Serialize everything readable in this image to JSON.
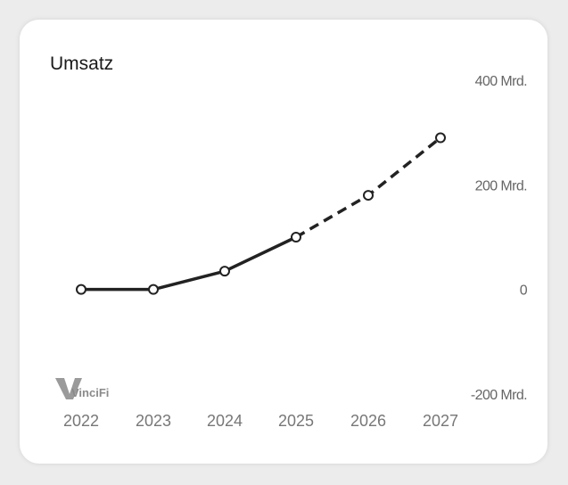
{
  "card": {
    "title": "Umsatz"
  },
  "watermark": {
    "text": "VinciFi"
  },
  "colors": {
    "line": "#222222",
    "marker_fill": "#ffffff",
    "tick_text": "#666666"
  },
  "chart_data": {
    "type": "line",
    "title": "Umsatz",
    "xlabel": "",
    "ylabel": "",
    "x": [
      "2022",
      "2023",
      "2024",
      "2025",
      "2026",
      "2027"
    ],
    "series": [
      {
        "style": "solid",
        "x": [
          "2022",
          "2023",
          "2024",
          "2025"
        ],
        "values": [
          0,
          0,
          35,
          100
        ]
      },
      {
        "style": "dashed",
        "x": [
          "2025",
          "2026",
          "2027"
        ],
        "values": [
          100,
          180,
          290
        ]
      }
    ],
    "y_ticks": [
      {
        "value": 400,
        "label": "400 Mrd."
      },
      {
        "value": 200,
        "label": "200 Mrd."
      },
      {
        "value": 0,
        "label": "0"
      },
      {
        "value": -200,
        "label": "-200 Mrd."
      }
    ],
    "ylim": [
      -200,
      400
    ],
    "y_axis_side": "right",
    "grid": false,
    "legend": false,
    "markers": "hollow-circles"
  }
}
